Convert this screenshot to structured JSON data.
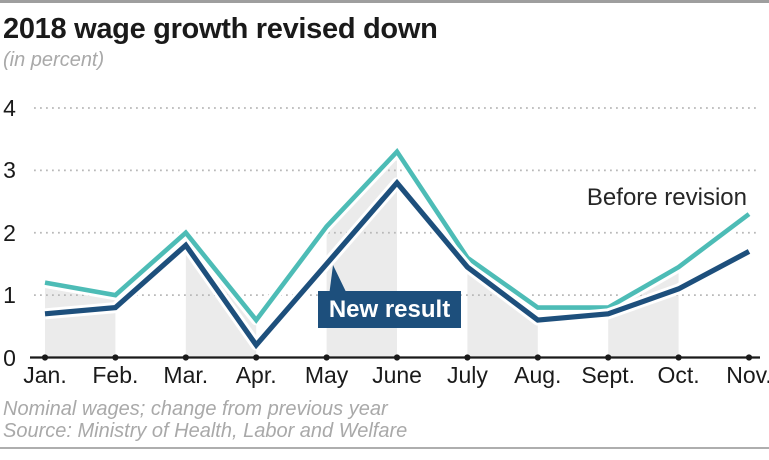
{
  "header": {
    "title": "2018 wage growth revised down",
    "subtitle": "(in percent)"
  },
  "annotations": {
    "before_revision": "Before revision",
    "new_result": "New result"
  },
  "footer": {
    "note": "Nominal wages; change from previous year",
    "source": "Source: Ministry of Health, Labor and Welfare"
  },
  "colors": {
    "before_revision_line": "#4dbcb6",
    "new_result_line": "#1d4f7c",
    "stripe_fill": "#ebebeb",
    "grid_dots": "#b9b9b9",
    "axis": "#1a1a1a",
    "label_box_bg": "#1d4f7c",
    "label_box_text": "#ffffff",
    "top_border": "#9e9e9e",
    "bottom_border": "#aeaeae",
    "muted_text": "#a9a9a9"
  },
  "chart_data": {
    "type": "line",
    "title": "2018 wage growth revised down",
    "subtitle": "(in percent)",
    "categories": [
      "Jan.",
      "Feb.",
      "Mar.",
      "Apr.",
      "May",
      "June",
      "July",
      "Aug.",
      "Sept.",
      "Oct.",
      "Nov."
    ],
    "series": [
      {
        "name": "Before revision",
        "color": "#4dbcb6",
        "values": [
          1.2,
          1.0,
          2.0,
          0.6,
          2.1,
          3.3,
          1.6,
          0.8,
          0.8,
          1.45,
          2.3
        ]
      },
      {
        "name": "New result",
        "color": "#1d4f7c",
        "values": [
          0.7,
          0.8,
          1.8,
          0.2,
          1.5,
          2.8,
          1.45,
          0.6,
          0.7,
          1.1,
          1.7
        ]
      }
    ],
    "ylim": [
      0,
      4
    ],
    "yticks": [
      0,
      1,
      2,
      3,
      4
    ],
    "grid": "horizontal-dotted",
    "legend": "inline-annotations",
    "shaded_columns": [
      [
        0,
        1
      ],
      [
        2,
        3
      ],
      [
        4,
        5
      ],
      [
        6,
        7
      ],
      [
        8,
        9
      ]
    ]
  }
}
